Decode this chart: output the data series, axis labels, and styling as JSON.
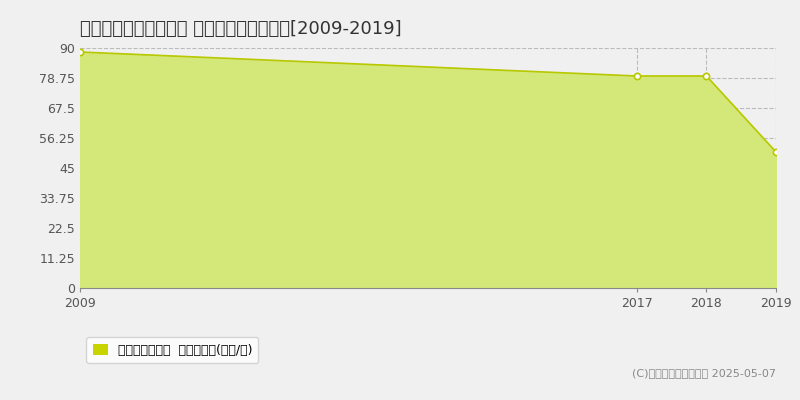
{
  "title": "名古屋市熱田区金山町 マンション価格推移[2009-2019]",
  "years": [
    2009,
    2017,
    2018,
    2019
  ],
  "values": [
    88.5,
    79.5,
    79.5,
    51.0
  ],
  "ylim": [
    0,
    90
  ],
  "yticks": [
    0,
    11.25,
    22.5,
    33.75,
    45,
    56.25,
    67.5,
    78.75,
    90
  ],
  "xticks": [
    2009,
    2017,
    2018,
    2019
  ],
  "line_color": "#b8c800",
  "fill_color": "#d4e87a",
  "marker_color": "#ffffff",
  "marker_edge_color": "#b8c800",
  "grid_color": "#bbbbbb",
  "bg_color": "#f0f0f0",
  "plot_bg_color": "#f0f0f0",
  "legend_label": "マンション価格  平均嵪単価(万円/嵪)",
  "legend_color": "#c8d400",
  "copyright_text": "(C)土地価格ドットコム 2025-05-07",
  "title_fontsize": 13,
  "axis_fontsize": 9,
  "legend_fontsize": 9,
  "copyright_fontsize": 8,
  "xlim_left": 2009,
  "xlim_right": 2019
}
